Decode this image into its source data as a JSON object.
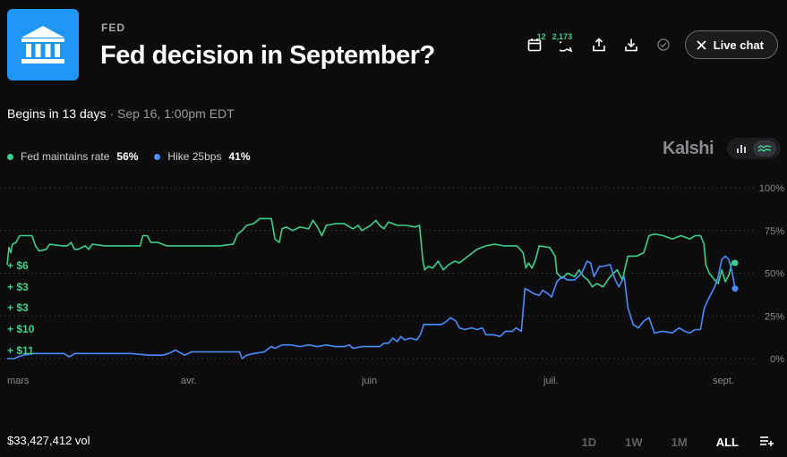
{
  "header": {
    "category": "FED",
    "title": "Fed decision in September?",
    "calendar_badge": "12",
    "comments_badge": "2,173",
    "live_chat_label": "Live chat"
  },
  "schedule": {
    "begins": "Begins in 13 days",
    "separator": "·",
    "datetime": "Sep 16, 1:00pm EDT"
  },
  "brand": "Kalshi",
  "chart_data": {
    "type": "line",
    "x_ticks": [
      "mars",
      "avr.",
      "juin",
      "juil.",
      "sept."
    ],
    "y_ticks": [
      "100%",
      "75%",
      "50%",
      "25%",
      "0%"
    ],
    "ylim": [
      0,
      100
    ],
    "grid": true,
    "legend_position": "top-left",
    "series": [
      {
        "name": "Fed maintains rate",
        "current_label": "56%",
        "color": "#3ecf8e",
        "values": [
          [
            0,
            55
          ],
          [
            2,
            65
          ],
          [
            4,
            62
          ],
          [
            6,
            67
          ],
          [
            10,
            68
          ],
          [
            14,
            72
          ],
          [
            28,
            72
          ],
          [
            32,
            66
          ],
          [
            36,
            63
          ],
          [
            44,
            64
          ],
          [
            48,
            67
          ],
          [
            62,
            66
          ],
          [
            68,
            66
          ],
          [
            72,
            68
          ],
          [
            76,
            64
          ],
          [
            80,
            64
          ],
          [
            88,
            66
          ],
          [
            92,
            64
          ],
          [
            96,
            67
          ],
          [
            110,
            66
          ],
          [
            130,
            66
          ],
          [
            140,
            66
          ],
          [
            150,
            66
          ],
          [
            153,
            72
          ],
          [
            158,
            72
          ],
          [
            162,
            68
          ],
          [
            170,
            68
          ],
          [
            180,
            66
          ],
          [
            200,
            66
          ],
          [
            220,
            66
          ],
          [
            240,
            66
          ],
          [
            255,
            67
          ],
          [
            260,
            73
          ],
          [
            265,
            75
          ],
          [
            270,
            78
          ],
          [
            278,
            79
          ],
          [
            285,
            82
          ],
          [
            292,
            82
          ],
          [
            298,
            82
          ],
          [
            302,
            70
          ],
          [
            307,
            68
          ],
          [
            310,
            76
          ],
          [
            315,
            77
          ],
          [
            322,
            75
          ],
          [
            330,
            77
          ],
          [
            340,
            76
          ],
          [
            345,
            81
          ],
          [
            350,
            77
          ],
          [
            355,
            72
          ],
          [
            360,
            78
          ],
          [
            370,
            79
          ],
          [
            380,
            79
          ],
          [
            390,
            76
          ],
          [
            396,
            78
          ],
          [
            400,
            75
          ],
          [
            410,
            78
          ],
          [
            416,
            81
          ],
          [
            420,
            78
          ],
          [
            425,
            76
          ],
          [
            430,
            80
          ],
          [
            440,
            78
          ],
          [
            450,
            78
          ],
          [
            460,
            77
          ],
          [
            465,
            78
          ],
          [
            469,
            57
          ],
          [
            471,
            52
          ],
          [
            475,
            54
          ],
          [
            480,
            53
          ],
          [
            486,
            57
          ],
          [
            492,
            52
          ],
          [
            498,
            55
          ],
          [
            505,
            57
          ],
          [
            510,
            56
          ],
          [
            520,
            60
          ],
          [
            530,
            64
          ],
          [
            540,
            66
          ],
          [
            550,
            67
          ],
          [
            560,
            66
          ],
          [
            575,
            66
          ],
          [
            582,
            62
          ],
          [
            585,
            53
          ],
          [
            588,
            56
          ],
          [
            592,
            53
          ],
          [
            596,
            58
          ],
          [
            600,
            66
          ],
          [
            612,
            65
          ],
          [
            618,
            60
          ],
          [
            620,
            50
          ],
          [
            626,
            47
          ],
          [
            632,
            50
          ],
          [
            640,
            48
          ],
          [
            645,
            52
          ],
          [
            650,
            48
          ],
          [
            655,
            46
          ],
          [
            660,
            42
          ],
          [
            665,
            44
          ],
          [
            672,
            42
          ],
          [
            680,
            48
          ],
          [
            688,
            52
          ],
          [
            694,
            46
          ],
          [
            700,
            60
          ],
          [
            710,
            60
          ],
          [
            718,
            62
          ],
          [
            724,
            72
          ],
          [
            730,
            73
          ],
          [
            740,
            72
          ],
          [
            750,
            70
          ],
          [
            760,
            72
          ],
          [
            770,
            70
          ],
          [
            776,
            72
          ],
          [
            782,
            72
          ],
          [
            786,
            67
          ],
          [
            788,
            55
          ],
          [
            792,
            50
          ],
          [
            798,
            46
          ],
          [
            802,
            44
          ],
          [
            806,
            52
          ],
          [
            810,
            45
          ],
          [
            814,
            49
          ],
          [
            818,
            57
          ],
          [
            821,
            56
          ]
        ]
      },
      {
        "name": "Hike 25bps",
        "current_label": "41%",
        "color": "#4a8cff",
        "values": [
          [
            0,
            0
          ],
          [
            8,
            0
          ],
          [
            12,
            1
          ],
          [
            18,
            2
          ],
          [
            30,
            3
          ],
          [
            50,
            3
          ],
          [
            64,
            3
          ],
          [
            70,
            1
          ],
          [
            76,
            3
          ],
          [
            100,
            3
          ],
          [
            120,
            3
          ],
          [
            140,
            3
          ],
          [
            160,
            2
          ],
          [
            175,
            2
          ],
          [
            182,
            3
          ],
          [
            190,
            5
          ],
          [
            200,
            2
          ],
          [
            208,
            4
          ],
          [
            220,
            4
          ],
          [
            240,
            4
          ],
          [
            250,
            4
          ],
          [
            262,
            4
          ],
          [
            265,
            0
          ],
          [
            270,
            2
          ],
          [
            278,
            3
          ],
          [
            290,
            4
          ],
          [
            295,
            6
          ],
          [
            298,
            7
          ],
          [
            302,
            6
          ],
          [
            310,
            8
          ],
          [
            320,
            8
          ],
          [
            330,
            7
          ],
          [
            340,
            8
          ],
          [
            350,
            7
          ],
          [
            360,
            8
          ],
          [
            370,
            7
          ],
          [
            380,
            7
          ],
          [
            386,
            8
          ],
          [
            390,
            6
          ],
          [
            400,
            7
          ],
          [
            420,
            7
          ],
          [
            425,
            9
          ],
          [
            430,
            9
          ],
          [
            435,
            12
          ],
          [
            440,
            10
          ],
          [
            444,
            13
          ],
          [
            448,
            11
          ],
          [
            455,
            12
          ],
          [
            462,
            11
          ],
          [
            466,
            14
          ],
          [
            470,
            20
          ],
          [
            474,
            20
          ],
          [
            480,
            20
          ],
          [
            490,
            20
          ],
          [
            496,
            22
          ],
          [
            500,
            24
          ],
          [
            506,
            22
          ],
          [
            510,
            18
          ],
          [
            516,
            17
          ],
          [
            524,
            18
          ],
          [
            530,
            17
          ],
          [
            536,
            18
          ],
          [
            540,
            14
          ],
          [
            548,
            14
          ],
          [
            556,
            13
          ],
          [
            562,
            16
          ],
          [
            570,
            16
          ],
          [
            574,
            18
          ],
          [
            580,
            16
          ],
          [
            584,
            41
          ],
          [
            588,
            40
          ],
          [
            594,
            38
          ],
          [
            600,
            37
          ],
          [
            604,
            40
          ],
          [
            610,
            38
          ],
          [
            614,
            36
          ],
          [
            620,
            45
          ],
          [
            626,
            48
          ],
          [
            632,
            46
          ],
          [
            640,
            46
          ],
          [
            648,
            50
          ],
          [
            654,
            57
          ],
          [
            658,
            56
          ],
          [
            662,
            48
          ],
          [
            668,
            54
          ],
          [
            672,
            54
          ],
          [
            680,
            55
          ],
          [
            686,
            46
          ],
          [
            690,
            42
          ],
          [
            696,
            48
          ],
          [
            700,
            30
          ],
          [
            706,
            20
          ],
          [
            712,
            18
          ],
          [
            718,
            22
          ],
          [
            724,
            24
          ],
          [
            730,
            15
          ],
          [
            740,
            16
          ],
          [
            750,
            15
          ],
          [
            758,
            18
          ],
          [
            764,
            16
          ],
          [
            770,
            15
          ],
          [
            776,
            17
          ],
          [
            782,
            17
          ],
          [
            786,
            29
          ],
          [
            790,
            34
          ],
          [
            794,
            38
          ],
          [
            798,
            42
          ],
          [
            802,
            48
          ],
          [
            806,
            58
          ],
          [
            810,
            60
          ],
          [
            814,
            58
          ],
          [
            818,
            50
          ],
          [
            821,
            41
          ]
        ]
      }
    ],
    "trade_annotations": [
      "+ $6",
      "+ $3",
      "+ $3",
      "+ $10",
      "+ $11"
    ]
  },
  "footer": {
    "volume": "$33,427,412 vol",
    "ranges": [
      "1D",
      "1W",
      "1M",
      "ALL"
    ],
    "active_range": "ALL"
  }
}
